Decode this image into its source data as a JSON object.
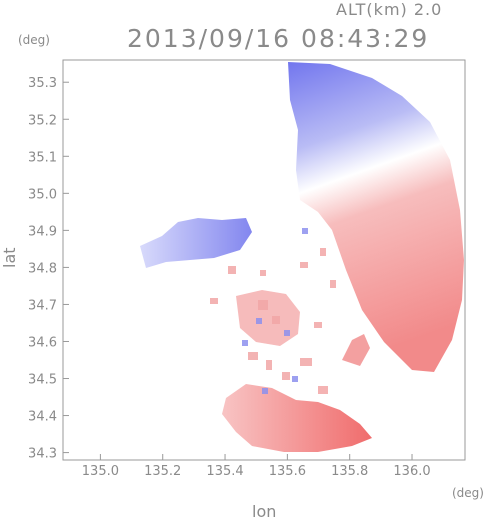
{
  "header": {
    "altitude_label": "ALT(km) 2.0",
    "timestamp": "2013/09/16 08:43:29"
  },
  "axes": {
    "y_unit": "(deg)",
    "x_unit": "(deg)",
    "xlabel": "lon",
    "ylabel": "lat",
    "x_ticks": [
      "135.0",
      "135.2",
      "135.4",
      "135.6",
      "135.8",
      "136.0"
    ],
    "y_ticks": [
      "35.3",
      "35.2",
      "35.1",
      "35.0",
      "34.9",
      "34.8",
      "34.7",
      "34.6",
      "34.5",
      "34.4",
      "34.3"
    ],
    "x_range": [
      134.88,
      136.17
    ],
    "y_range": [
      34.28,
      35.36
    ]
  },
  "colors": {
    "approaching": "#7b7ff0",
    "receding": "#f47a7a",
    "axis": "#999999"
  }
}
